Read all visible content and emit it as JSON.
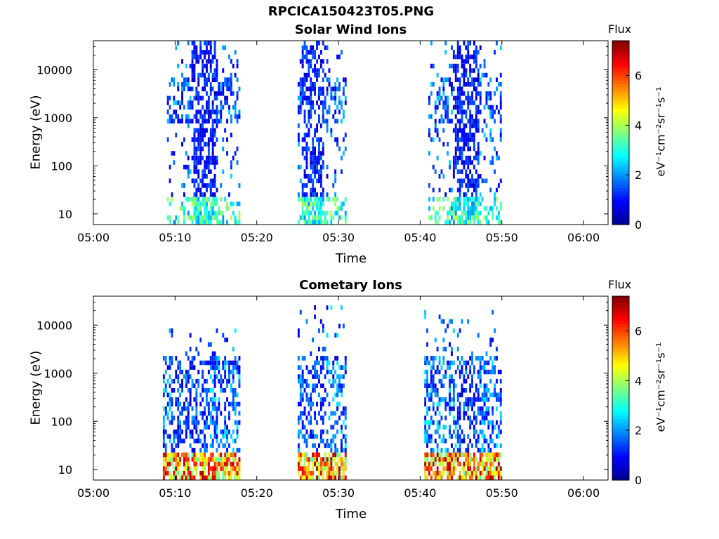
{
  "figure": {
    "title": "RPCICA150423T05.PNG",
    "colormap": [
      "#00008f",
      "#0000ff",
      "#0080ff",
      "#00ffff",
      "#80ff80",
      "#ffff00",
      "#ff8000",
      "#ff0000",
      "#800000"
    ]
  },
  "chart_data": [
    {
      "type": "heatmap",
      "title": "Solar Wind Ions",
      "xlabel": "Time",
      "ylabel": "Energy (eV)",
      "x_ticks": [
        "05:00",
        "05:10",
        "05:20",
        "05:30",
        "05:40",
        "05:50",
        "06:00"
      ],
      "x_range_minutes": [
        0,
        63
      ],
      "y_ticks": [
        10,
        100,
        1000,
        10000
      ],
      "y_scale": "log",
      "y_range": [
        6,
        40000
      ],
      "colorbar": {
        "label": "Flux",
        "unit": "eV⁻¹cm⁻²sr⁻¹s⁻¹",
        "ticks": [
          0,
          2,
          4,
          6
        ],
        "range": [
          0,
          7.4
        ]
      },
      "bursts": [
        {
          "start_min": 9.0,
          "end_min": 18.0,
          "core_start_min": 12.0,
          "core_end_min": 15.0,
          "core_flux": 1.2,
          "spread_flux": 1.8,
          "max_energy": 35000
        },
        {
          "start_min": 25.0,
          "end_min": 31.0,
          "core_start_min": 25.5,
          "core_end_min": 28.0,
          "core_flux": 1.2,
          "spread_flux": 1.8,
          "max_energy": 38000
        },
        {
          "start_min": 41.0,
          "end_min": 50.0,
          "core_start_min": 44.0,
          "core_end_min": 47.0,
          "core_flux": 1.2,
          "spread_flux": 1.8,
          "max_energy": 35000
        }
      ],
      "low_energy_band_flux": 3.2
    },
    {
      "type": "heatmap",
      "title": "Cometary Ions",
      "xlabel": "Time",
      "ylabel": "Energy (eV)",
      "x_ticks": [
        "05:00",
        "05:10",
        "05:20",
        "05:30",
        "05:40",
        "05:50",
        "06:00"
      ],
      "x_range_minutes": [
        0,
        63
      ],
      "y_ticks": [
        10,
        100,
        1000,
        10000
      ],
      "y_scale": "log",
      "y_range": [
        6,
        40000
      ],
      "colorbar": {
        "label": "Flux",
        "unit": "eV⁻¹cm⁻²sr⁻¹s⁻¹",
        "ticks": [
          0,
          2,
          4,
          6
        ],
        "range": [
          0,
          7.4
        ]
      },
      "bursts": [
        {
          "start_min": 8.5,
          "end_min": 18.0,
          "core_start_min": 9.5,
          "core_end_min": 14.0,
          "core_flux": 1.5,
          "spread_flux": 2.0,
          "max_energy": 8000
        },
        {
          "start_min": 25.0,
          "end_min": 31.0,
          "core_start_min": 25.5,
          "core_end_min": 28.0,
          "core_flux": 1.5,
          "spread_flux": 2.0,
          "max_energy": 30000
        },
        {
          "start_min": 40.5,
          "end_min": 50.0,
          "core_start_min": 44.5,
          "core_end_min": 47.0,
          "core_flux": 1.5,
          "spread_flux": 2.0,
          "max_energy": 18000
        }
      ],
      "low_energy_band_flux": 5.5
    }
  ]
}
